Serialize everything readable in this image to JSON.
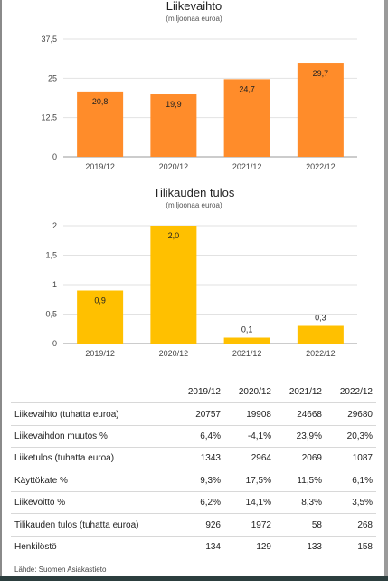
{
  "chart_data": [
    {
      "type": "bar",
      "title": "Liikevaihto",
      "subtitle": "(miljoonaa euroa)",
      "categories": [
        "2019/12",
        "2020/12",
        "2021/12",
        "2022/12"
      ],
      "values": [
        20.8,
        19.9,
        24.7,
        29.7
      ],
      "value_labels": [
        "20,8",
        "19,9",
        "24,7",
        "29,7"
      ],
      "yticks": [
        0,
        12.5,
        25,
        37.5
      ],
      "ytick_labels": [
        "0",
        "12,5",
        "25",
        "37,5"
      ],
      "ylim": [
        0,
        37.5
      ],
      "color": "#ff8c2a",
      "grid": true
    },
    {
      "type": "bar",
      "title": "Tilikauden tulos",
      "subtitle": "(miljoonaa euroa)",
      "categories": [
        "2019/12",
        "2020/12",
        "2021/12",
        "2022/12"
      ],
      "values": [
        0.9,
        2.0,
        0.1,
        0.3
      ],
      "value_labels": [
        "0,9",
        "2,0",
        "0,1",
        "0,3"
      ],
      "yticks": [
        0,
        0.5,
        1,
        1.5,
        2
      ],
      "ytick_labels": [
        "0",
        "0,5",
        "1",
        "1,5",
        "2"
      ],
      "ylim": [
        0,
        2
      ],
      "color": "#ffc000",
      "grid": true
    }
  ],
  "table": {
    "headers": [
      "",
      "2019/12",
      "2020/12",
      "2021/12",
      "2022/12"
    ],
    "rows": [
      [
        "Liikevaihto (tuhatta euroa)",
        "20757",
        "19908",
        "24668",
        "29680"
      ],
      [
        "Liikevaihdon muutos %",
        "6,4%",
        "-4,1%",
        "23,9%",
        "20,3%"
      ],
      [
        "Liiketulos (tuhatta euroa)",
        "1343",
        "2964",
        "2069",
        "1087"
      ],
      [
        "Käyttökate %",
        "9,3%",
        "17,5%",
        "11,5%",
        "6,1%"
      ],
      [
        "Liikevoitto %",
        "6,2%",
        "14,1%",
        "8,3%",
        "3,5%"
      ],
      [
        "Tilikauden tulos (tuhatta euroa)",
        "926",
        "1972",
        "58",
        "268"
      ],
      [
        "Henkilöstö",
        "134",
        "129",
        "133",
        "158"
      ]
    ]
  },
  "source": "Lähde: Suomen Asiakastieto"
}
